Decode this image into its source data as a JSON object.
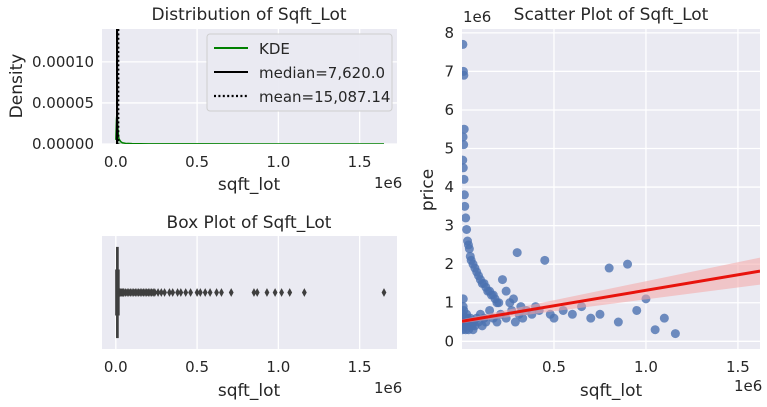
{
  "chart_data": [
    {
      "type": "area",
      "title": "Distribution of Sqft_Lot",
      "xlabel": "sqft_lot",
      "ylabel": "Density",
      "x_offset_label": "1e6",
      "xlim": [
        -0.085,
        1.73
      ],
      "ylim": [
        0,
        0.00014
      ],
      "x_ticks": [
        "0.0",
        "0.5",
        "1.0",
        "1.5"
      ],
      "x_tick_values": [
        0,
        0.5,
        1.0,
        1.5
      ],
      "y_ticks": [
        "0.00000",
        "0.00005",
        "0.00010"
      ],
      "y_tick_values": [
        0,
        5e-05,
        0.0001
      ],
      "grid": true,
      "legend_position": "top-right",
      "kde": {
        "name": "KDE",
        "color": "#008000",
        "x": [
          0,
          0.004,
          0.008,
          0.012,
          0.016,
          0.02,
          0.03,
          0.04,
          0.06,
          0.1,
          0.2,
          0.5,
          1.0,
          1.65
        ],
        "y": [
          5e-06,
          3e-05,
          4e-05,
          2.2e-05,
          1e-05,
          6e-06,
          3e-06,
          1.5e-06,
          8e-07,
          4e-07,
          2e-07,
          1e-07,
          5e-08,
          2e-08
        ]
      },
      "lines": [
        {
          "name": "median=7,620.0",
          "value": 0.00762,
          "color": "#000000",
          "style": "solid"
        },
        {
          "name": "mean=15,087.14",
          "value": 0.015087,
          "color": "#000000",
          "style": "dotted"
        }
      ]
    },
    {
      "type": "box",
      "title": "Box Plot of Sqft_Lot",
      "xlabel": "sqft_lot",
      "x_offset_label": "1e6",
      "xlim": [
        -0.085,
        1.73
      ],
      "x_ticks": [
        "0.0",
        "0.5",
        "1.0",
        "1.5"
      ],
      "x_tick_values": [
        0,
        0.5,
        1.0,
        1.5
      ],
      "box_color": "#4c72b0",
      "stats": {
        "whisker_low": 0.00052,
        "q1": 0.00504,
        "median": 0.00762,
        "q3": 0.0107,
        "whisker_high": 0.0192
      },
      "outliers": [
        0.022,
        0.025,
        0.03,
        0.035,
        0.04,
        0.045,
        0.05,
        0.06,
        0.07,
        0.08,
        0.09,
        0.1,
        0.11,
        0.12,
        0.13,
        0.14,
        0.15,
        0.16,
        0.17,
        0.18,
        0.19,
        0.2,
        0.21,
        0.22,
        0.23,
        0.24,
        0.26,
        0.28,
        0.3,
        0.33,
        0.35,
        0.38,
        0.4,
        0.43,
        0.46,
        0.5,
        0.52,
        0.55,
        0.58,
        0.62,
        0.65,
        0.71,
        0.85,
        0.87,
        0.93,
        0.98,
        1.02,
        1.07,
        1.16,
        1.65
      ]
    },
    {
      "type": "scatter",
      "title": "Scatter Plot of Sqft_Lot",
      "xlabel": "sqft_lot",
      "ylabel": "price",
      "x_offset_label": "1e6",
      "y_offset_label": "1e6",
      "xlim": [
        0,
        1.62
      ],
      "ylim": [
        -0.2,
        8.1
      ],
      "x_ticks": [
        "0.5",
        "1.0",
        "1.5"
      ],
      "x_tick_values": [
        0.5,
        1.0,
        1.5
      ],
      "y_ticks": [
        "0",
        "1",
        "2",
        "3",
        "4",
        "5",
        "6",
        "7",
        "8"
      ],
      "y_tick_values": [
        0,
        1,
        2,
        3,
        4,
        5,
        6,
        7,
        8
      ],
      "grid": true,
      "point_color": "#4c72b0",
      "regression": {
        "color": "#e8130c",
        "x": [
          0,
          1.62
        ],
        "y": [
          0.52,
          1.82
        ],
        "ci_color": "#f4a6a6"
      },
      "points": {
        "x": [
          0.005,
          0.008,
          0.01,
          0.012,
          0.006,
          0.009,
          0.004,
          0.007,
          0.011,
          0.013,
          0.015,
          0.02,
          0.025,
          0.03,
          0.035,
          0.04,
          0.045,
          0.05,
          0.06,
          0.07,
          0.08,
          0.09,
          0.1,
          0.11,
          0.12,
          0.13,
          0.14,
          0.15,
          0.16,
          0.17,
          0.18,
          0.19,
          0.2,
          0.22,
          0.24,
          0.26,
          0.28,
          0.3,
          0.32,
          0.35,
          0.38,
          0.4,
          0.42,
          0.45,
          0.48,
          0.5,
          0.55,
          0.6,
          0.65,
          0.7,
          0.75,
          0.8,
          0.85,
          0.9,
          0.95,
          1.0,
          1.05,
          1.1,
          1.16,
          1.65,
          0.003,
          0.004,
          0.005,
          0.006,
          0.007,
          0.008,
          0.009,
          0.01,
          0.012,
          0.015,
          0.018,
          0.02,
          0.022,
          0.025,
          0.028,
          0.03,
          0.033,
          0.036,
          0.04,
          0.045,
          0.05,
          0.055,
          0.06,
          0.065,
          0.07,
          0.08,
          0.09,
          0.1,
          0.11,
          0.12,
          0.13,
          0.15,
          0.17,
          0.19,
          0.21,
          0.24,
          0.27,
          0.29,
          0.31,
          0.33
        ],
        "y": [
          7.7,
          7.0,
          6.9,
          5.5,
          5.3,
          5.1,
          4.7,
          4.5,
          4.2,
          3.8,
          3.5,
          3.2,
          2.9,
          2.6,
          2.5,
          2.4,
          2.2,
          2.1,
          2.0,
          1.9,
          1.8,
          1.7,
          1.6,
          1.5,
          1.5,
          1.4,
          1.3,
          1.3,
          1.2,
          1.2,
          1.1,
          1.0,
          1.0,
          1.6,
          1.3,
          1.0,
          1.1,
          2.3,
          0.9,
          0.8,
          0.7,
          0.9,
          0.8,
          2.1,
          0.7,
          0.6,
          0.8,
          0.7,
          0.9,
          0.6,
          0.7,
          1.9,
          0.5,
          2.0,
          0.8,
          1.1,
          0.3,
          0.6,
          0.2,
          0.7,
          0.3,
          0.5,
          0.7,
          0.9,
          1.1,
          0.4,
          0.6,
          0.8,
          0.5,
          0.4,
          0.6,
          0.3,
          0.5,
          0.7,
          0.4,
          0.6,
          0.5,
          0.3,
          0.4,
          0.6,
          0.5,
          0.4,
          0.3,
          0.5,
          0.4,
          0.6,
          0.5,
          0.7,
          0.4,
          0.6,
          0.5,
          0.8,
          0.6,
          0.5,
          0.7,
          0.6,
          0.8,
          0.5,
          0.7,
          0.6
        ]
      }
    }
  ]
}
